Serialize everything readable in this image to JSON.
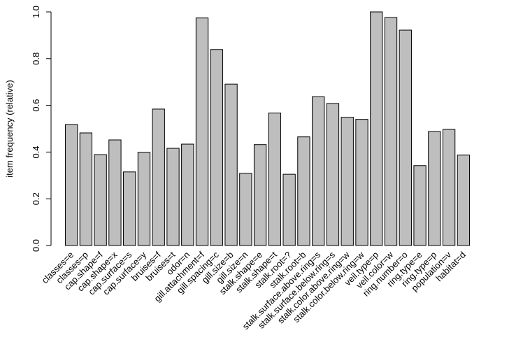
{
  "chart_data": {
    "type": "bar",
    "ylabel": "item frequency (relative)",
    "ylim": [
      0,
      1.0
    ],
    "yticks": [
      "0.0",
      "0.2",
      "0.4",
      "0.6",
      "0.8",
      "1.0"
    ],
    "bar_color": "#bebebe",
    "categories": [
      "classes=e",
      "classes=p",
      "cap.shape=f",
      "cap.shape=x",
      "cap.surface=s",
      "cap.surface=y",
      "bruises=f",
      "bruises=t",
      "odor=n",
      "gill.attachment=f",
      "gill.spacing=c",
      "gill.size=b",
      "gill.size=n",
      "stalk.shape=e",
      "stalk.shape=t",
      "stalk.root=?",
      "stalk.root=b",
      "stalk.surface.above.ring=s",
      "stalk.surface.below.ring=s",
      "stalk.color.above.ring=w",
      "stalk.color.below.ring=w",
      "veil.type=p",
      "veil.color=w",
      "ring.number=o",
      "ring.type=e",
      "ring.type=p",
      "population=v",
      "habitat=d"
    ],
    "values": [
      0.518,
      0.482,
      0.389,
      0.452,
      0.315,
      0.399,
      0.584,
      0.416,
      0.434,
      0.974,
      0.839,
      0.691,
      0.309,
      0.432,
      0.567,
      0.305,
      0.465,
      0.637,
      0.608,
      0.549,
      0.54,
      1.0,
      0.976,
      0.922,
      0.342,
      0.488,
      0.497,
      0.387
    ]
  }
}
